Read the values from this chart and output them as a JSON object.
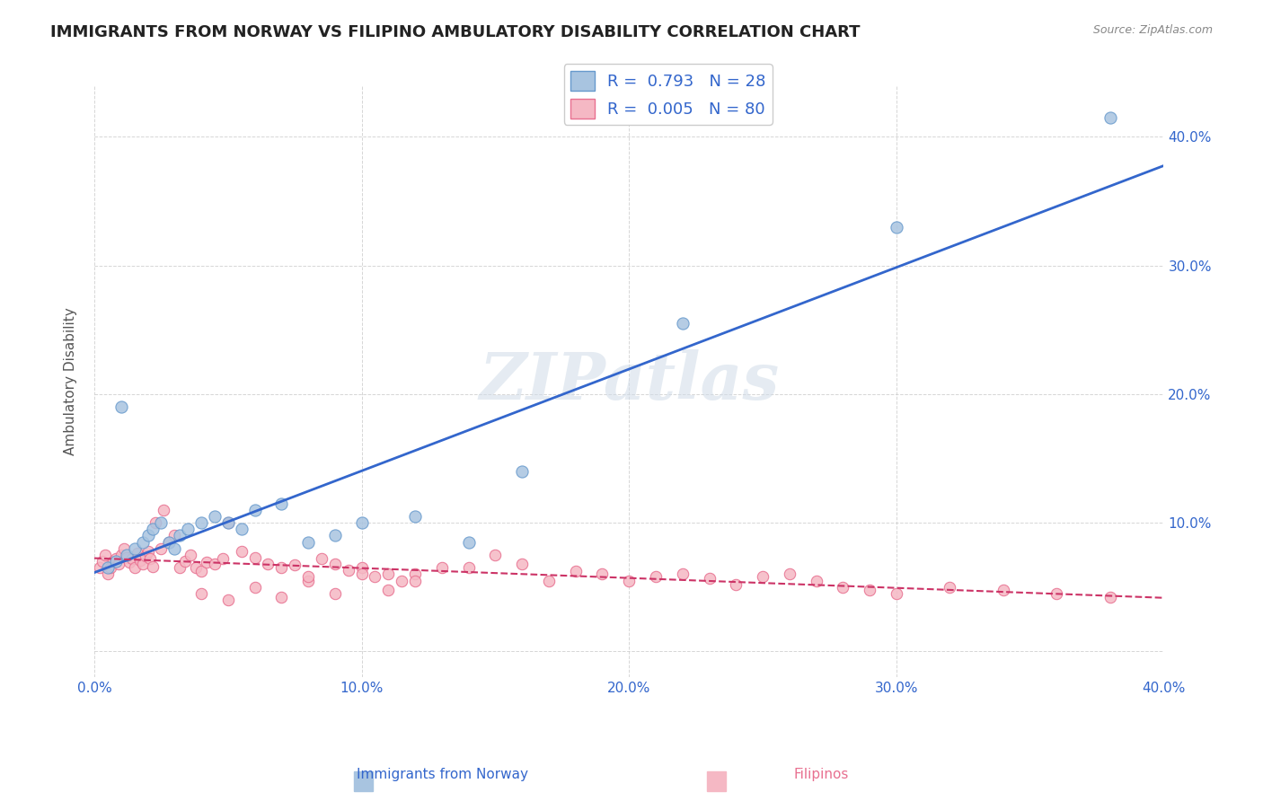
{
  "title": "IMMIGRANTS FROM NORWAY VS FILIPINO AMBULATORY DISABILITY CORRELATION CHART",
  "source": "Source: ZipAtlas.com",
  "xlabel_left": "Immigrants from Norway",
  "xlabel_right": "Filipinos",
  "ylabel": "Ambulatory Disability",
  "xlim": [
    0.0,
    0.4
  ],
  "ylim": [
    -0.02,
    0.44
  ],
  "yticks_right": [
    0.0,
    0.1,
    0.2,
    0.3,
    0.4
  ],
  "ytick_labels_right": [
    "",
    "10.0%",
    "20.0%",
    "30.0%",
    "40.0%"
  ],
  "xticks": [
    0.0,
    0.1,
    0.2,
    0.3,
    0.4
  ],
  "xtick_labels": [
    "0.0%",
    "10.0%",
    "20.0%",
    "30.0%",
    "40.0%"
  ],
  "norway_color": "#a8c4e0",
  "norway_edge_color": "#6699cc",
  "filipino_color": "#f5b8c4",
  "filipino_edge_color": "#e87090",
  "norway_line_color": "#3366cc",
  "filipino_line_color": "#cc3366",
  "R_norway": 0.793,
  "N_norway": 28,
  "R_filipino": 0.005,
  "N_filipino": 80,
  "norway_scatter_x": [
    0.005,
    0.008,
    0.01,
    0.012,
    0.015,
    0.018,
    0.02,
    0.022,
    0.025,
    0.028,
    0.03,
    0.032,
    0.035,
    0.04,
    0.045,
    0.05,
    0.055,
    0.06,
    0.07,
    0.08,
    0.09,
    0.1,
    0.12,
    0.14,
    0.16,
    0.22,
    0.3,
    0.38
  ],
  "norway_scatter_y": [
    0.065,
    0.07,
    0.19,
    0.075,
    0.08,
    0.085,
    0.09,
    0.095,
    0.1,
    0.085,
    0.08,
    0.09,
    0.095,
    0.1,
    0.105,
    0.1,
    0.095,
    0.11,
    0.115,
    0.085,
    0.09,
    0.1,
    0.105,
    0.085,
    0.14,
    0.255,
    0.33,
    0.415
  ],
  "filipino_scatter_x": [
    0.002,
    0.003,
    0.004,
    0.005,
    0.006,
    0.007,
    0.008,
    0.009,
    0.01,
    0.011,
    0.012,
    0.013,
    0.014,
    0.015,
    0.016,
    0.017,
    0.018,
    0.019,
    0.02,
    0.021,
    0.022,
    0.023,
    0.025,
    0.026,
    0.028,
    0.03,
    0.032,
    0.034,
    0.036,
    0.038,
    0.04,
    0.042,
    0.045,
    0.048,
    0.05,
    0.055,
    0.06,
    0.065,
    0.07,
    0.075,
    0.08,
    0.085,
    0.09,
    0.095,
    0.1,
    0.105,
    0.11,
    0.115,
    0.12,
    0.13,
    0.14,
    0.15,
    0.16,
    0.17,
    0.18,
    0.19,
    0.2,
    0.21,
    0.22,
    0.23,
    0.24,
    0.25,
    0.26,
    0.27,
    0.28,
    0.29,
    0.3,
    0.32,
    0.34,
    0.36,
    0.38,
    0.1,
    0.12,
    0.08,
    0.06,
    0.09,
    0.11,
    0.07,
    0.05,
    0.04
  ],
  "filipino_scatter_y": [
    0.065,
    0.07,
    0.075,
    0.06,
    0.065,
    0.07,
    0.072,
    0.068,
    0.075,
    0.08,
    0.073,
    0.069,
    0.072,
    0.065,
    0.076,
    0.071,
    0.068,
    0.074,
    0.078,
    0.072,
    0.066,
    0.1,
    0.08,
    0.11,
    0.085,
    0.09,
    0.065,
    0.07,
    0.075,
    0.065,
    0.062,
    0.069,
    0.068,
    0.072,
    0.1,
    0.078,
    0.073,
    0.068,
    0.065,
    0.067,
    0.055,
    0.072,
    0.068,
    0.063,
    0.065,
    0.058,
    0.06,
    0.055,
    0.06,
    0.065,
    0.065,
    0.075,
    0.068,
    0.055,
    0.062,
    0.06,
    0.055,
    0.058,
    0.06,
    0.057,
    0.052,
    0.058,
    0.06,
    0.055,
    0.05,
    0.048,
    0.045,
    0.05,
    0.048,
    0.045,
    0.042,
    0.06,
    0.055,
    0.058,
    0.05,
    0.045,
    0.048,
    0.042,
    0.04,
    0.045
  ],
  "watermark": "ZIPatlas",
  "background_color": "#ffffff",
  "grid_color": "#cccccc",
  "plot_bg_color": "#ffffff"
}
